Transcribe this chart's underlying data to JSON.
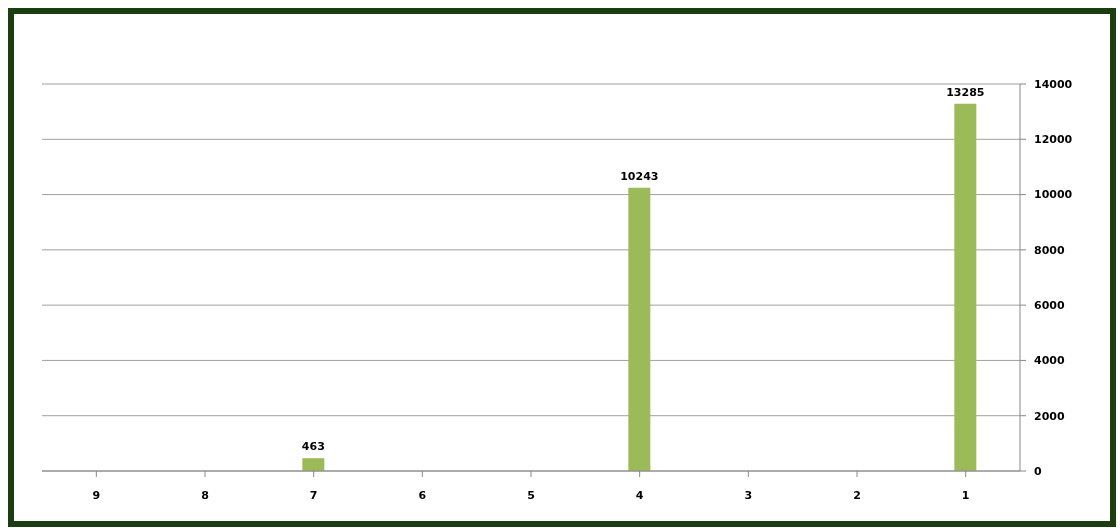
{
  "chart_data": {
    "type": "bar",
    "categories": [
      "9",
      "8",
      "7",
      "6",
      "5",
      "4",
      "3",
      "2",
      "1"
    ],
    "values": [
      null,
      null,
      463,
      null,
      null,
      10243,
      null,
      null,
      13285
    ],
    "value_labels": [
      null,
      null,
      "463",
      null,
      null,
      "10243",
      null,
      null,
      "13285"
    ],
    "color": "#9bbb59",
    "ylim": [
      0,
      14000
    ],
    "yticks": [
      0,
      2000,
      4000,
      6000,
      8000,
      10000,
      12000,
      14000
    ],
    "grid": "y"
  }
}
